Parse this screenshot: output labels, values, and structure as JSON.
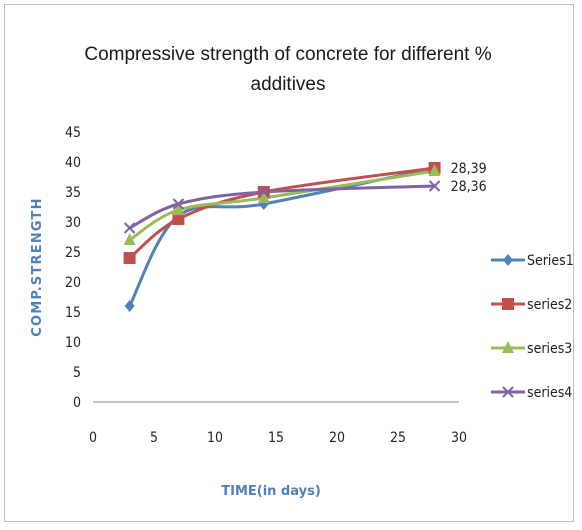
{
  "chart_data": {
    "type": "line",
    "title_line1": "Compressive strength of concrete for different %",
    "title_line2": "additives",
    "xlabel": "TIME(in days)",
    "ylabel": "COMP.STRENGTH",
    "xlim": [
      0,
      30
    ],
    "ylim": [
      0,
      45
    ],
    "x_ticks": [
      "0",
      "5",
      "10",
      "15",
      "20",
      "25",
      "30"
    ],
    "y_ticks": [
      "0",
      "5",
      "10",
      "15",
      "20",
      "25",
      "30",
      "35",
      "40",
      "45"
    ],
    "grid": false,
    "legend_position": "right",
    "series": [
      {
        "name": "Series1",
        "color": "#4f81bd",
        "marker": "diamond",
        "points": [
          [
            3,
            16
          ],
          [
            7,
            31
          ],
          [
            14,
            33
          ],
          [
            28,
            39
          ]
        ]
      },
      {
        "name": "series2",
        "color": "#c0504d",
        "marker": "square",
        "points": [
          [
            3,
            24
          ],
          [
            7,
            30.5
          ],
          [
            14,
            35
          ],
          [
            28,
            39
          ]
        ]
      },
      {
        "name": "series3",
        "color": "#9bbb59",
        "marker": "triangle",
        "points": [
          [
            3,
            27
          ],
          [
            7,
            32
          ],
          [
            14,
            34
          ],
          [
            28,
            38.5
          ]
        ]
      },
      {
        "name": "series4",
        "color": "#8064a2",
        "marker": "x",
        "points": [
          [
            3,
            29
          ],
          [
            7,
            33
          ],
          [
            14,
            35
          ],
          [
            28,
            36
          ]
        ]
      }
    ],
    "annotations": [
      {
        "text": "28,39",
        "x": 28,
        "y": 39
      },
      {
        "text": "28,36",
        "x": 28,
        "y": 36
      }
    ]
  }
}
